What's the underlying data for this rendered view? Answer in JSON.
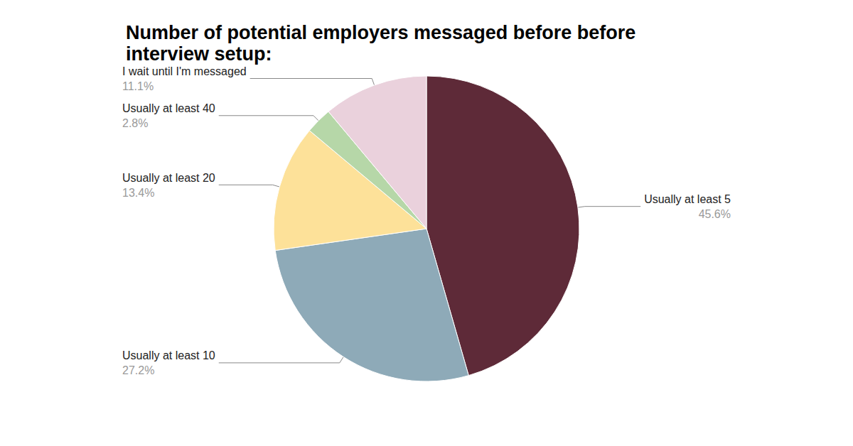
{
  "chart_data": {
    "type": "pie",
    "title": "Number of potential employers messaged before before interview setup:",
    "categories": [
      "Usually at least 5",
      "Usually at least 10",
      "Usually at least 20",
      "Usually at least 40",
      "I wait until I'm messaged"
    ],
    "values": [
      45.6,
      27.2,
      13.4,
      2.8,
      11.1
    ],
    "value_labels": [
      "45.6%",
      "27.2%",
      "13.4%",
      "2.8%",
      "11.1%"
    ],
    "colors": [
      "#5e2a38",
      "#8eaab8",
      "#fde199",
      "#b6d7a8",
      "#ead1dc"
    ],
    "data_labels": true
  }
}
